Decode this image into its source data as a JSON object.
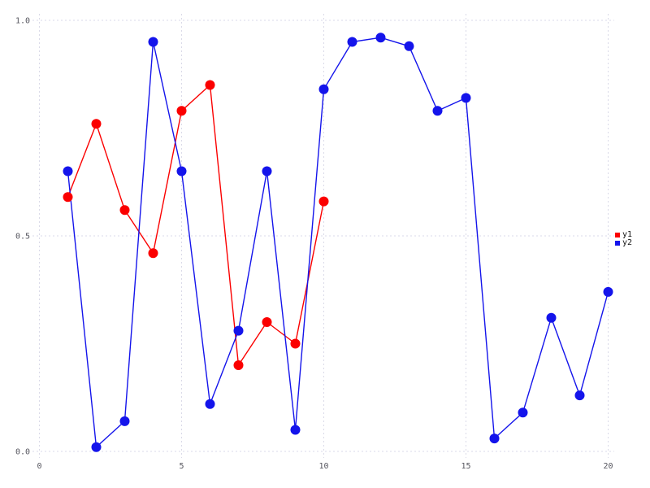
{
  "chart_data": {
    "type": "line",
    "title": "",
    "xlabel": "",
    "ylabel": "",
    "xlim": [
      0,
      20.2
    ],
    "ylim": [
      -0.02,
      1.02
    ],
    "grid": "dotted",
    "legend_position": "right-center",
    "xticks": [
      0,
      5,
      10,
      15,
      20
    ],
    "xtick_labels": [
      "0",
      "5",
      "10",
      "15",
      "20"
    ],
    "yticks": [
      0,
      0.5,
      1
    ],
    "ytick_labels": [
      "0.0",
      "0.5",
      "1.0"
    ],
    "series": [
      {
        "name": "y1",
        "color": "#fb0000",
        "x": [
          1,
          2,
          3,
          4,
          5,
          6,
          7,
          8,
          9,
          10
        ],
        "y": [
          0.59,
          0.76,
          0.56,
          0.46,
          0.79,
          0.85,
          0.2,
          0.3,
          0.25,
          0.58
        ]
      },
      {
        "name": "y2",
        "color": "#1414eb",
        "x": [
          1,
          2,
          3,
          4,
          5,
          6,
          7,
          8,
          9,
          10,
          11,
          12,
          13,
          14,
          15,
          16,
          17,
          18,
          19,
          20
        ],
        "y": [
          0.65,
          0.01,
          0.07,
          0.95,
          0.65,
          0.11,
          0.28,
          0.65,
          0.05,
          0.84,
          0.95,
          0.96,
          0.94,
          0.79,
          0.82,
          0.03,
          0.09,
          0.31,
          0.13,
          0.37
        ]
      }
    ],
    "colors": {
      "background": "#ffffff",
      "grid": "#dadae8",
      "tick_label": "#55555e",
      "legend_text": "#111111"
    }
  }
}
